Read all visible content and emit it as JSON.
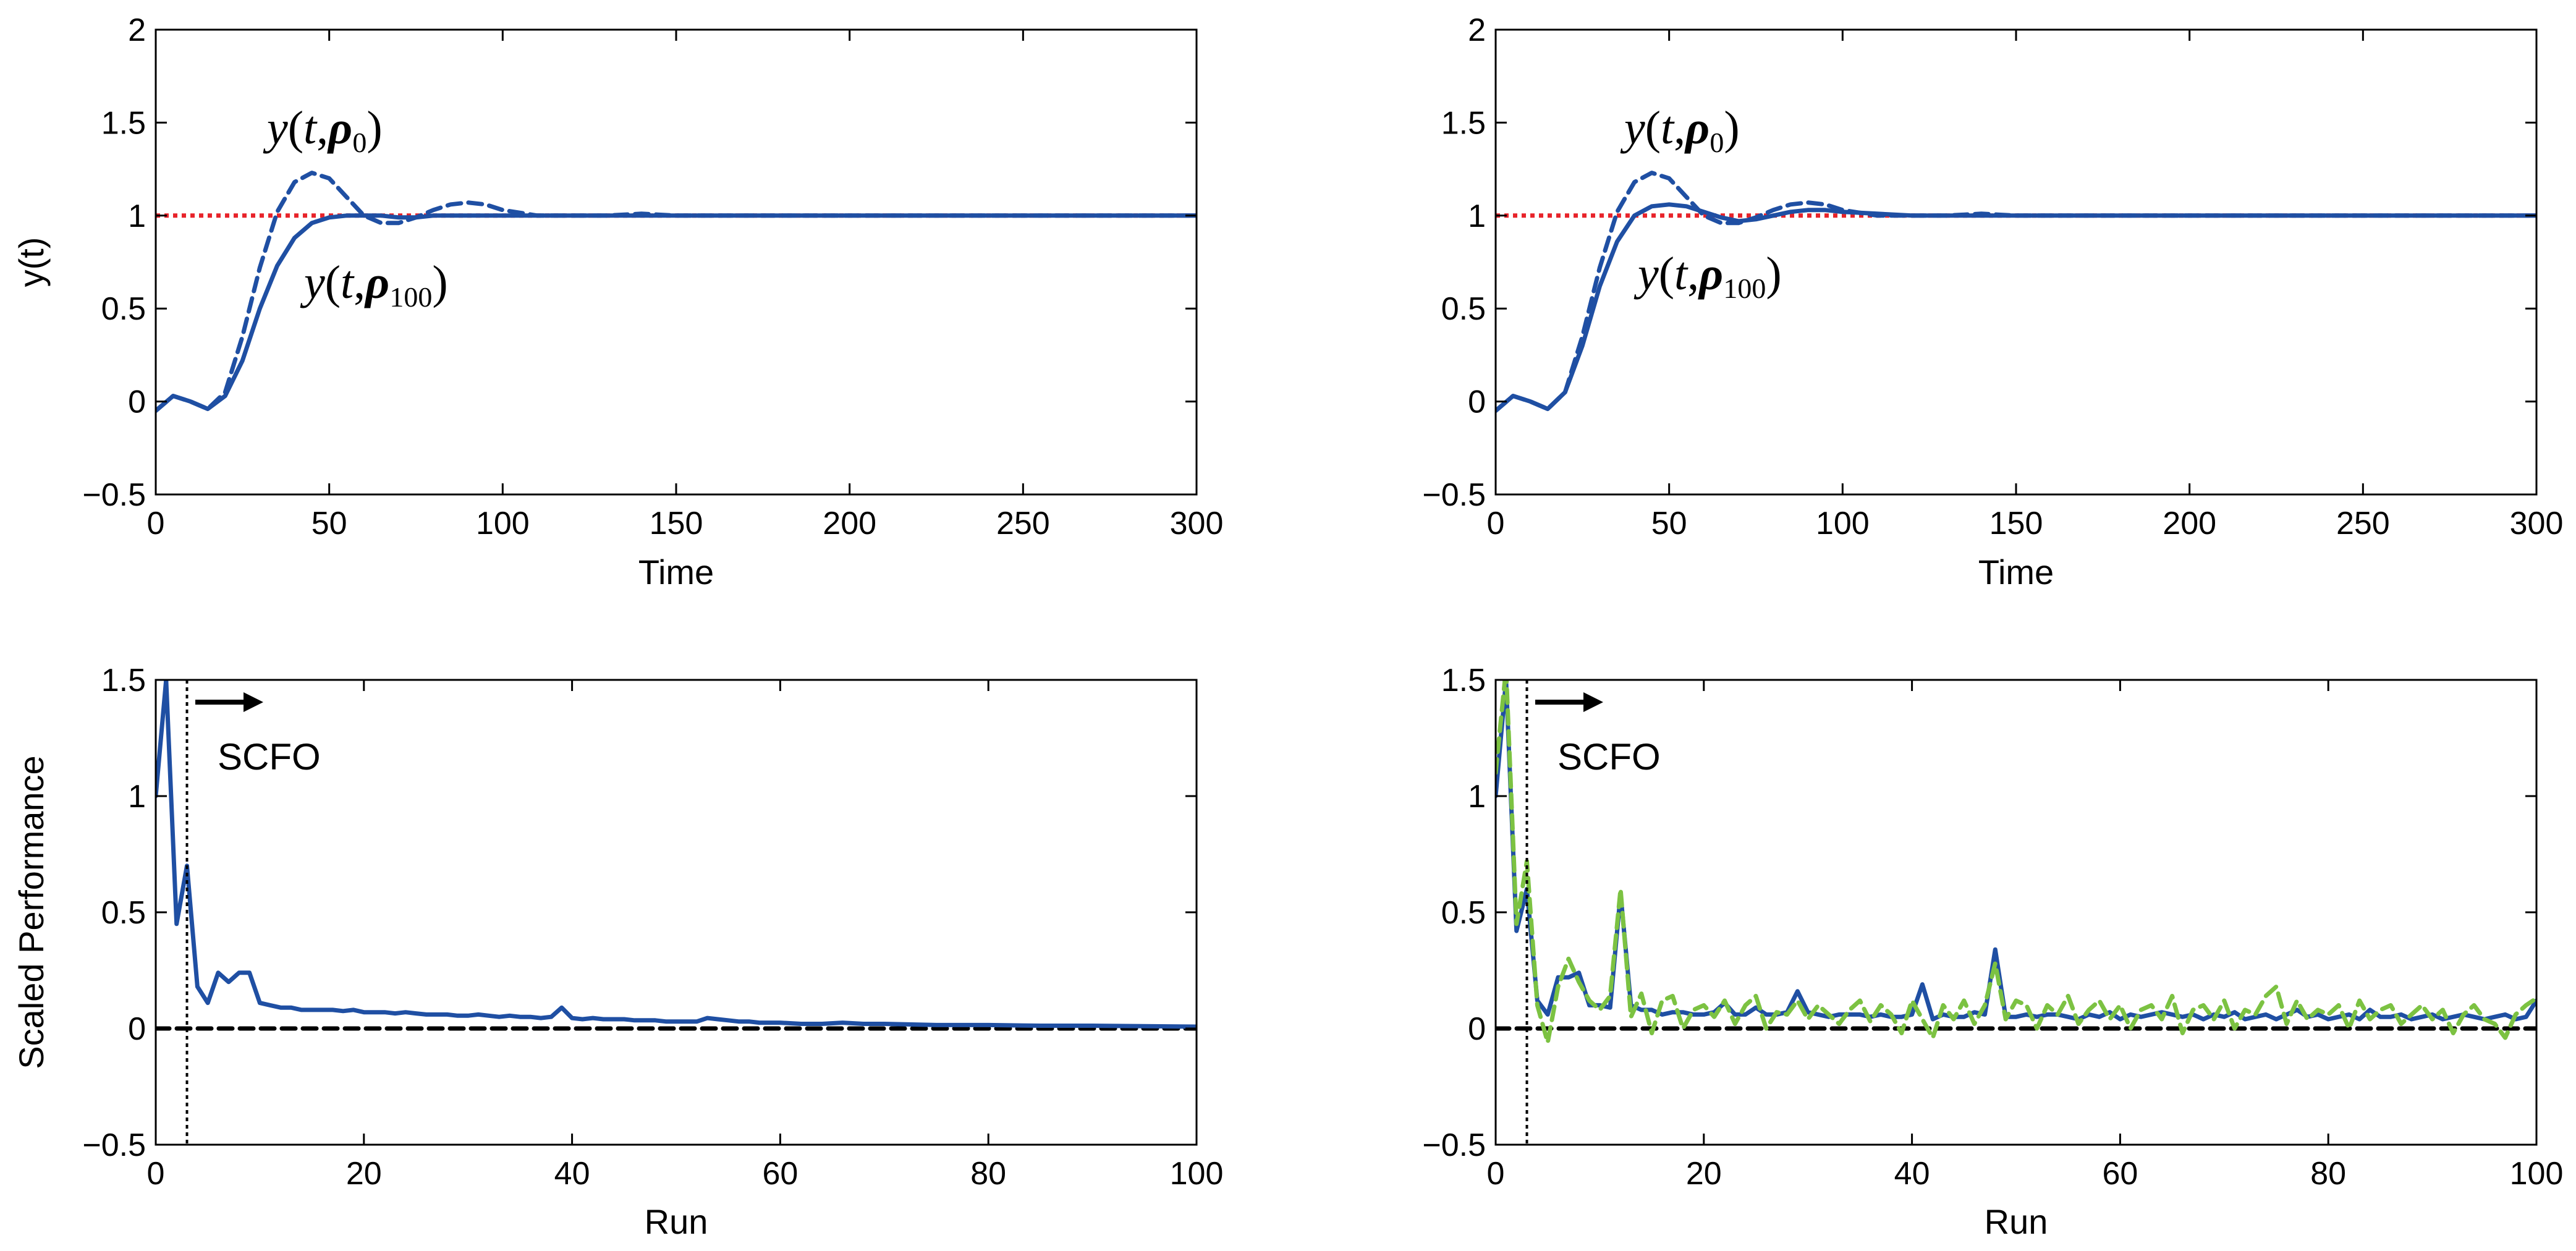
{
  "colors": {
    "response": "#1f4fa3",
    "reference": "#e8232a",
    "alt_series": "#7cc242",
    "zero_line": "#000000",
    "axis": "#000000"
  },
  "chart_data": [
    {
      "id": "top-left",
      "type": "line",
      "xlabel": "Time",
      "ylabel": "y(t)",
      "xlim": [
        0,
        300
      ],
      "ylim": [
        -0.5,
        2
      ],
      "xticks": [
        "0",
        "50",
        "100",
        "150",
        "200",
        "250",
        "300"
      ],
      "yticks": [
        "−0.5",
        "0",
        "0.5",
        "1",
        "1.5",
        "2"
      ],
      "xtick_values": [
        0,
        50,
        100,
        150,
        200,
        250,
        300
      ],
      "ytick_values": [
        -0.5,
        0,
        0.5,
        1,
        1.5,
        2
      ],
      "series": [
        {
          "name": "y(t, rho_0)",
          "style": "dashed",
          "color": "#1f4fa3",
          "x": [
            0,
            5,
            10,
            15,
            20,
            25,
            30,
            35,
            40,
            45,
            50,
            55,
            60,
            65,
            70,
            75,
            80,
            85,
            90,
            95,
            100,
            110,
            120,
            130,
            140,
            150,
            175,
            200,
            250,
            300
          ],
          "y": [
            -0.05,
            0.03,
            0.0,
            -0.04,
            0.05,
            0.35,
            0.72,
            1.02,
            1.18,
            1.23,
            1.2,
            1.1,
            1.0,
            0.96,
            0.96,
            0.99,
            1.03,
            1.06,
            1.07,
            1.06,
            1.03,
            1.0,
            1.0,
            1.0,
            1.01,
            1.0,
            1.0,
            1.0,
            1.0,
            1.0
          ]
        },
        {
          "name": "y(t, rho_100)",
          "style": "solid",
          "color": "#1f4fa3",
          "x": [
            0,
            5,
            10,
            15,
            20,
            25,
            30,
            35,
            40,
            45,
            50,
            55,
            60,
            65,
            70,
            75,
            80,
            90,
            100,
            110,
            120,
            150,
            200,
            250,
            300
          ],
          "y": [
            -0.05,
            0.03,
            0.0,
            -0.04,
            0.03,
            0.22,
            0.5,
            0.73,
            0.88,
            0.96,
            0.99,
            1.0,
            1.0,
            1.0,
            0.99,
            0.99,
            1.0,
            1.0,
            1.0,
            1.0,
            1.0,
            1.0,
            1.0,
            1.0,
            1.0
          ]
        },
        {
          "name": "reference",
          "style": "dotted",
          "color": "#e8232a",
          "x": [
            0,
            300
          ],
          "y": [
            1,
            1
          ]
        }
      ],
      "annotations": [
        {
          "label": "y(t,ρ0)",
          "x": 75,
          "y": 1.55
        },
        {
          "label": "y(t,ρ100)",
          "x": 85,
          "y": 0.78
        }
      ]
    },
    {
      "id": "top-right",
      "type": "line",
      "xlabel": "Time",
      "ylabel": "",
      "xlim": [
        0,
        300
      ],
      "ylim": [
        -0.5,
        2
      ],
      "xticks": [
        "0",
        "50",
        "100",
        "150",
        "200",
        "250",
        "300"
      ],
      "yticks": [
        "−0.5",
        "0",
        "0.5",
        "1",
        "1.5",
        "2"
      ],
      "xtick_values": [
        0,
        50,
        100,
        150,
        200,
        250,
        300
      ],
      "ytick_values": [
        -0.5,
        0,
        0.5,
        1,
        1.5,
        2
      ],
      "series": [
        {
          "name": "y(t, rho_0)",
          "style": "dashed",
          "color": "#1f4fa3",
          "x": [
            0,
            5,
            10,
            15,
            20,
            25,
            30,
            35,
            40,
            45,
            50,
            55,
            60,
            65,
            70,
            75,
            80,
            85,
            90,
            95,
            100,
            110,
            120,
            130,
            140,
            150,
            175,
            200,
            250,
            300
          ],
          "y": [
            -0.05,
            0.03,
            0.0,
            -0.04,
            0.05,
            0.35,
            0.72,
            1.02,
            1.18,
            1.23,
            1.2,
            1.1,
            1.0,
            0.96,
            0.96,
            0.99,
            1.03,
            1.06,
            1.07,
            1.06,
            1.03,
            1.0,
            1.0,
            1.0,
            1.01,
            1.0,
            1.0,
            1.0,
            1.0,
            1.0
          ]
        },
        {
          "name": "y(t, rho_100)",
          "style": "solid",
          "color": "#1f4fa3",
          "x": [
            0,
            5,
            10,
            15,
            20,
            25,
            30,
            35,
            40,
            45,
            50,
            55,
            60,
            65,
            70,
            75,
            80,
            85,
            90,
            95,
            100,
            110,
            120,
            140,
            160,
            200,
            250,
            300
          ],
          "y": [
            -0.05,
            0.03,
            0.0,
            -0.04,
            0.05,
            0.3,
            0.62,
            0.86,
            1.0,
            1.05,
            1.06,
            1.05,
            1.02,
            0.99,
            0.97,
            0.98,
            1.0,
            1.02,
            1.03,
            1.03,
            1.02,
            1.01,
            1.0,
            1.0,
            1.0,
            1.0,
            1.0,
            1.0
          ]
        },
        {
          "name": "reference",
          "style": "dotted",
          "color": "#e8232a",
          "x": [
            0,
            300
          ],
          "y": [
            1,
            1
          ]
        }
      ],
      "annotations": [
        {
          "label": "y(t,ρ0)",
          "x": 75,
          "y": 1.55
        },
        {
          "label": "y(t,ρ100)",
          "x": 90,
          "y": 0.78
        }
      ]
    },
    {
      "id": "bottom-left",
      "type": "line",
      "xlabel": "Run",
      "ylabel": "Scaled Performance",
      "xlim": [
        0,
        100
      ],
      "ylim": [
        -0.5,
        1.5
      ],
      "xticks": [
        "0",
        "20",
        "40",
        "60",
        "80",
        "100"
      ],
      "yticks": [
        "−0.5",
        "0",
        "0.5",
        "1",
        "1.5"
      ],
      "xtick_values": [
        0,
        20,
        40,
        60,
        80,
        100
      ],
      "ytick_values": [
        -0.5,
        0,
        0.5,
        1,
        1.5
      ],
      "series": [
        {
          "name": "performance",
          "style": "solid",
          "color": "#1f4fa3",
          "x": [
            0,
            1,
            2,
            3,
            4,
            5,
            6,
            7,
            8,
            9,
            10,
            11,
            12,
            13,
            14,
            15,
            16,
            17,
            18,
            19,
            20,
            21,
            22,
            23,
            24,
            25,
            26,
            27,
            28,
            29,
            30,
            31,
            32,
            33,
            34,
            35,
            36,
            37,
            38,
            39,
            40,
            41,
            42,
            43,
            44,
            45,
            46,
            47,
            48,
            49,
            50,
            51,
            52,
            53,
            54,
            55,
            56,
            57,
            58,
            59,
            60,
            62,
            64,
            66,
            68,
            70,
            75,
            80,
            85,
            90,
            95,
            100
          ],
          "y": [
            1.0,
            1.5,
            0.45,
            0.7,
            0.18,
            0.11,
            0.24,
            0.2,
            0.24,
            0.24,
            0.11,
            0.1,
            0.09,
            0.09,
            0.08,
            0.08,
            0.08,
            0.08,
            0.075,
            0.08,
            0.07,
            0.07,
            0.07,
            0.065,
            0.07,
            0.065,
            0.06,
            0.06,
            0.06,
            0.055,
            0.055,
            0.06,
            0.055,
            0.05,
            0.055,
            0.05,
            0.05,
            0.045,
            0.05,
            0.09,
            0.045,
            0.04,
            0.045,
            0.04,
            0.04,
            0.04,
            0.035,
            0.035,
            0.035,
            0.03,
            0.03,
            0.03,
            0.03,
            0.045,
            0.04,
            0.035,
            0.03,
            0.03,
            0.025,
            0.025,
            0.025,
            0.02,
            0.02,
            0.025,
            0.02,
            0.02,
            0.015,
            0.015,
            0.012,
            0.012,
            0.01,
            0.008
          ]
        },
        {
          "name": "zero",
          "style": "dashed",
          "color": "#000000",
          "x": [
            0,
            100
          ],
          "y": [
            0,
            0
          ]
        }
      ],
      "vline": {
        "x": 3
      },
      "annotations": [
        {
          "label": "SCFO"
        }
      ]
    },
    {
      "id": "bottom-right",
      "type": "line",
      "xlabel": "Run",
      "ylabel": "",
      "xlim": [
        0,
        100
      ],
      "ylim": [
        -0.5,
        1.5
      ],
      "xticks": [
        "0",
        "20",
        "40",
        "60",
        "80",
        "100"
      ],
      "yticks": [
        "−0.5",
        "0",
        "0.5",
        "1",
        "1.5"
      ],
      "xtick_values": [
        0,
        20,
        40,
        60,
        80,
        100
      ],
      "ytick_values": [
        -0.5,
        0,
        0.5,
        1,
        1.5
      ],
      "series": [
        {
          "name": "performance",
          "style": "solid",
          "color": "#1f4fa3",
          "x": [
            0,
            1,
            2,
            3,
            4,
            5,
            6,
            7,
            8,
            9,
            10,
            11,
            12,
            13,
            14,
            15,
            16,
            17,
            18,
            19,
            20,
            21,
            22,
            23,
            24,
            25,
            26,
            27,
            28,
            29,
            30,
            31,
            32,
            33,
            34,
            35,
            36,
            37,
            38,
            39,
            40,
            41,
            42,
            43,
            44,
            45,
            46,
            47,
            48,
            49,
            50,
            51,
            52,
            53,
            54,
            55,
            56,
            57,
            58,
            59,
            60,
            61,
            62,
            63,
            64,
            65,
            66,
            67,
            68,
            69,
            70,
            71,
            72,
            73,
            74,
            75,
            76,
            77,
            78,
            79,
            80,
            81,
            82,
            83,
            84,
            85,
            86,
            87,
            88,
            89,
            90,
            91,
            92,
            93,
            94,
            95,
            96,
            97,
            98,
            99,
            100
          ],
          "y": [
            1.0,
            1.5,
            0.42,
            0.6,
            0.12,
            0.06,
            0.22,
            0.22,
            0.24,
            0.1,
            0.1,
            0.09,
            0.58,
            0.1,
            0.08,
            0.08,
            0.06,
            0.07,
            0.07,
            0.06,
            0.06,
            0.07,
            0.11,
            0.06,
            0.06,
            0.09,
            0.06,
            0.06,
            0.07,
            0.16,
            0.07,
            0.06,
            0.05,
            0.06,
            0.06,
            0.06,
            0.05,
            0.06,
            0.05,
            0.05,
            0.06,
            0.19,
            0.04,
            0.06,
            0.05,
            0.05,
            0.07,
            0.06,
            0.34,
            0.05,
            0.05,
            0.06,
            0.05,
            0.06,
            0.06,
            0.05,
            0.04,
            0.06,
            0.05,
            0.07,
            0.04,
            0.06,
            0.05,
            0.06,
            0.07,
            0.06,
            0.05,
            0.06,
            0.04,
            0.06,
            0.05,
            0.07,
            0.04,
            0.05,
            0.06,
            0.04,
            0.06,
            0.08,
            0.05,
            0.06,
            0.04,
            0.05,
            0.06,
            0.04,
            0.08,
            0.05,
            0.05,
            0.06,
            0.04,
            0.05,
            0.06,
            0.04,
            0.05,
            0.06,
            0.05,
            0.04,
            0.05,
            0.06,
            0.04,
            0.05,
            0.12
          ]
        },
        {
          "name": "alternative",
          "style": "dashed",
          "color": "#7cc242",
          "x": [
            0,
            1,
            2,
            3,
            4,
            5,
            6,
            7,
            8,
            9,
            10,
            11,
            12,
            13,
            14,
            15,
            16,
            17,
            18,
            19,
            20,
            21,
            22,
            23,
            24,
            25,
            26,
            27,
            28,
            29,
            30,
            31,
            32,
            33,
            34,
            35,
            36,
            37,
            38,
            39,
            40,
            41,
            42,
            43,
            44,
            45,
            46,
            47,
            48,
            49,
            50,
            51,
            52,
            53,
            54,
            55,
            56,
            57,
            58,
            59,
            60,
            61,
            62,
            63,
            64,
            65,
            66,
            67,
            68,
            69,
            70,
            71,
            72,
            73,
            74,
            75,
            76,
            77,
            78,
            79,
            80,
            81,
            82,
            83,
            84,
            85,
            86,
            87,
            88,
            89,
            90,
            91,
            92,
            93,
            94,
            95,
            96,
            97,
            98,
            99,
            100
          ],
          "y": [
            1.1,
            1.55,
            0.45,
            0.72,
            0.1,
            -0.06,
            0.18,
            0.3,
            0.2,
            0.12,
            0.08,
            0.14,
            0.6,
            0.05,
            0.15,
            -0.02,
            0.12,
            0.14,
            0.0,
            0.08,
            0.1,
            0.05,
            0.12,
            0.02,
            0.1,
            0.14,
            0.0,
            0.07,
            0.06,
            0.12,
            0.04,
            0.1,
            0.06,
            0.02,
            0.08,
            0.12,
            0.03,
            0.1,
            0.06,
            -0.02,
            0.12,
            0.04,
            -0.04,
            0.1,
            0.04,
            0.12,
            0.02,
            0.1,
            0.28,
            0.04,
            0.12,
            0.1,
            0.0,
            0.1,
            0.06,
            0.14,
            0.02,
            0.08,
            0.12,
            0.04,
            0.1,
            0.0,
            0.08,
            0.1,
            0.04,
            0.14,
            -0.02,
            0.08,
            0.1,
            0.04,
            0.12,
            0.0,
            0.08,
            0.06,
            0.14,
            0.18,
            0.02,
            0.12,
            0.04,
            0.08,
            0.06,
            0.1,
            0.0,
            0.12,
            0.04,
            0.08,
            0.1,
            0.02,
            0.06,
            0.1,
            0.04,
            0.08,
            -0.02,
            0.06,
            0.1,
            0.04,
            0.02,
            -0.04,
            0.06,
            0.1,
            0.13
          ]
        },
        {
          "name": "zero",
          "style": "dashed",
          "color": "#000000",
          "x": [
            0,
            100
          ],
          "y": [
            0,
            0
          ]
        }
      ],
      "vline": {
        "x": 3
      },
      "annotations": [
        {
          "label": "SCFO"
        }
      ]
    }
  ]
}
